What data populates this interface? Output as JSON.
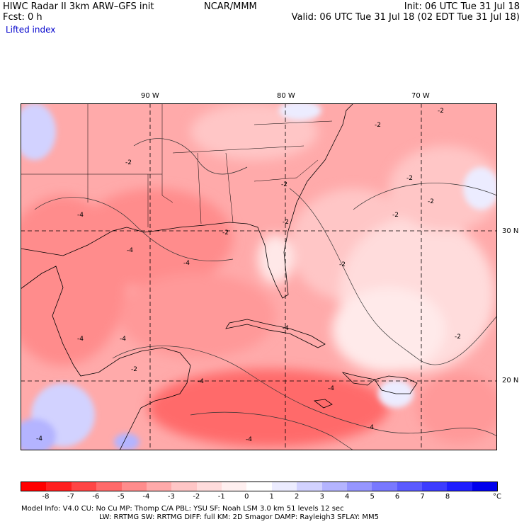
{
  "header": {
    "title_left": "HIWC Radar II 3km ARW–GFS init",
    "org": "NCAR/MMM",
    "init": "Init: 06 UTC Tue 31 Jul 18",
    "fcst": "Fcst:    0 h",
    "valid": "Valid: 06 UTC Tue 31 Jul 18 (02 EDT Tue 31 Jul 18)",
    "field": "Lifted index",
    "field_color": "#0000cc"
  },
  "map": {
    "lon_labels": [
      "90 W",
      "80 W",
      "70 W"
    ],
    "lat_labels": [
      "30 N",
      "20 N"
    ],
    "contour_labels": [
      "-2",
      "-2",
      "-2",
      "-2",
      "-2",
      "-2",
      "-2",
      "-2",
      "-2",
      "-2",
      "-2",
      "-4",
      "-4",
      "-4",
      "-4",
      "-4",
      "-4",
      "-4",
      "-4",
      "-4",
      "-4",
      "-2",
      "-4"
    ]
  },
  "legend": {
    "colors": [
      "#ff0000",
      "#ff2020",
      "#ff4545",
      "#ff6a6a",
      "#ff8c8c",
      "#ffaaaa",
      "#ffc6c6",
      "#ffdcdc",
      "#fff0f0",
      "#ffffff",
      "#ececff",
      "#d2d2ff",
      "#b4b4ff",
      "#9696ff",
      "#7878ff",
      "#5a5aff",
      "#3c3cff",
      "#1e1eff",
      "#0000ee"
    ],
    "labels": [
      "-8",
      "-7",
      "-6",
      "-5",
      "-4",
      "-3",
      "-2",
      "-1",
      "0",
      "1",
      "2",
      "3",
      "4",
      "5",
      "6",
      "7",
      "8"
    ],
    "unit": "°C"
  },
  "footer": {
    "line1": "Model Info: V4.0     CU: No Cu     MP: Thomp C/A    PBL: YSU        SF: Noah LSM     3.0 km  51 levels   12 sec",
    "line2": "LW: RRTMG      SW: RRTMG   DIFF: full    KM: 2D Smagor DAMP: Rayleigh3   SFLAY: MM5"
  }
}
